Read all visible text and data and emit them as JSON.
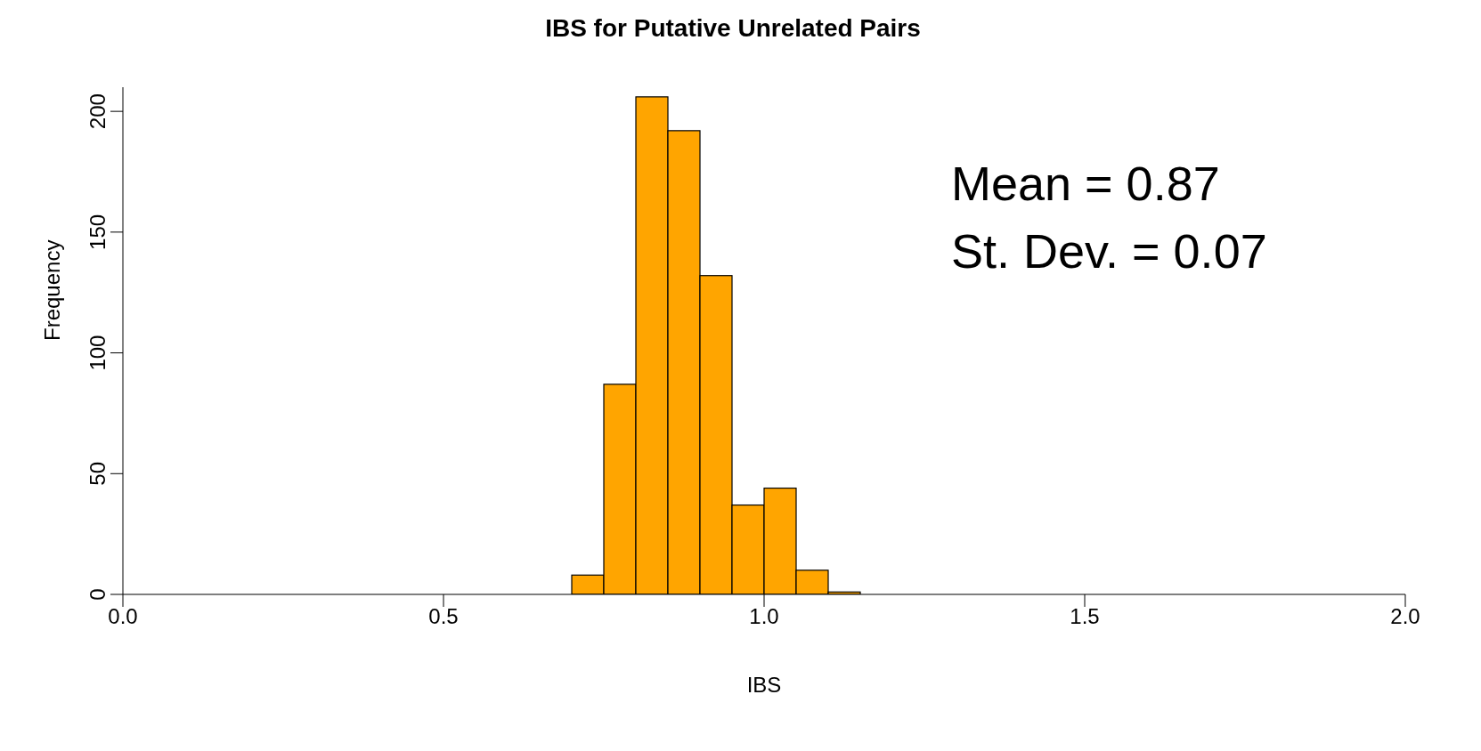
{
  "chart_data": {
    "type": "histogram",
    "title": "IBS for Putative Unrelated Pairs",
    "xlabel": "IBS",
    "ylabel": "Frequency",
    "bins": [
      0,
      0.05,
      0.1,
      0.15,
      0.2,
      0.25,
      0.3,
      0.35,
      0.4,
      0.45,
      0.5,
      0.55,
      0.6,
      0.65,
      0.7,
      0.75,
      0.8,
      0.85,
      0.9,
      0.95,
      1,
      1.05,
      1.1,
      1.15,
      1.2,
      1.25,
      1.3,
      1.35,
      1.4,
      1.45,
      1.5,
      1.55,
      1.6,
      1.65,
      1.7,
      1.75,
      1.8,
      1.85,
      1.9,
      1.95,
      2
    ],
    "values": [
      0,
      0,
      0,
      0,
      0,
      0,
      0,
      0,
      0,
      0,
      0,
      0,
      0,
      0,
      8,
      87,
      206,
      192,
      132,
      37,
      44,
      10,
      1,
      0,
      0,
      0,
      0,
      0,
      0,
      0,
      0,
      0,
      0,
      0,
      0,
      0,
      0,
      0,
      0,
      0
    ],
    "color": "#ffa500",
    "xlim": [
      0,
      2
    ],
    "xticks": [
      {
        "value": 0,
        "label": "0.0"
      },
      {
        "value": 0.5,
        "label": "0.5"
      },
      {
        "value": 1,
        "label": "1.0"
      },
      {
        "value": 1.5,
        "label": "1.5"
      },
      {
        "value": 2,
        "label": "2.0"
      }
    ],
    "ylim": [
      0,
      210
    ],
    "yticks": [
      0,
      50,
      100,
      150,
      200
    ],
    "grid": false,
    "annotations": [
      "Mean = 0.87",
      "St. Dev. = 0.07"
    ]
  }
}
